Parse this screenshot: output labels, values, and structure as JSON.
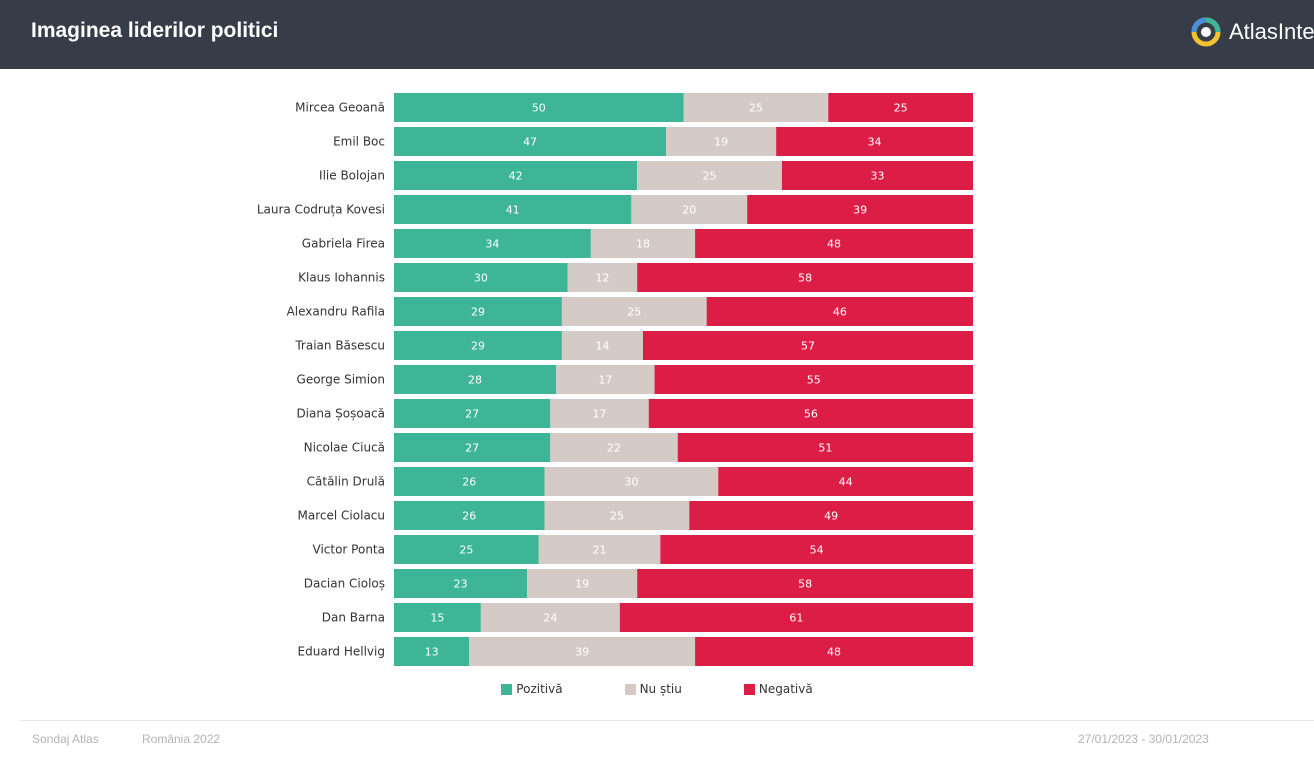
{
  "header": {
    "title": "Imaginea liderilor politici",
    "brand": "AtlasInte"
  },
  "footer": {
    "source": "Sondaj Atlas",
    "region": "România 2022",
    "dates": "27/01/2023 - 30/01/2023"
  },
  "colors": {
    "header_bg": "#363c48",
    "positive": "#3db596",
    "neutral": "#d5cbc6",
    "negative": "#dc1e46"
  },
  "chart_data": {
    "type": "bar",
    "orientation": "horizontal",
    "stacked": true,
    "title": "Imaginea liderilor politici",
    "xlim": [
      0,
      100
    ],
    "categories": [
      "Mircea Geoană",
      "Emil Boc",
      "Ilie Bolojan",
      "Laura Codruța Kovesi",
      "Gabriela Firea",
      "Klaus Iohannis",
      "Alexandru Rafila",
      "Traian Băsescu",
      "George Simion",
      "Diana Șoșoacă",
      "Nicolae Ciucă",
      "Cătălin Drulă",
      "Marcel Ciolacu",
      "Victor Ponta",
      "Dacian Cioloș",
      "Dan Barna",
      "Eduard Hellvig"
    ],
    "series": [
      {
        "name": "Pozitivă",
        "color": "#3db596",
        "values": [
          50,
          47,
          42,
          41,
          34,
          30,
          29,
          29,
          28,
          27,
          27,
          26,
          26,
          25,
          23,
          15,
          13
        ]
      },
      {
        "name": "Nu știu",
        "color": "#d5cbc6",
        "values": [
          25,
          19,
          25,
          20,
          18,
          12,
          25,
          14,
          17,
          17,
          22,
          30,
          25,
          21,
          19,
          24,
          39
        ]
      },
      {
        "name": "Negativă",
        "color": "#dc1e46",
        "values": [
          25,
          34,
          33,
          39,
          48,
          58,
          46,
          57,
          55,
          56,
          51,
          44,
          49,
          54,
          58,
          61,
          48
        ]
      }
    ],
    "legend": "bottom-center"
  }
}
